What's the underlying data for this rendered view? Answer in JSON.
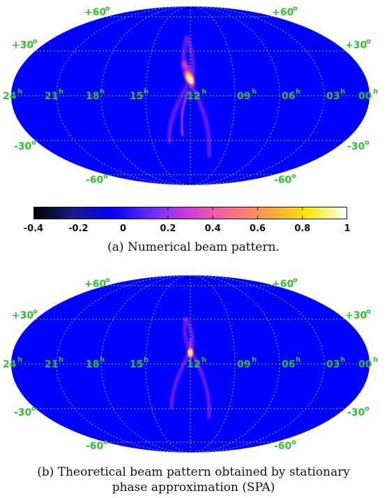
{
  "colorbar": {
    "ticks": [
      "-0.4",
      "-0.2",
      "0",
      "0.2",
      "0.4",
      "0.6",
      "0.8",
      "1"
    ],
    "colormap": [
      "#000000",
      "#1a1a8c",
      "#0000ff",
      "#6a2cff",
      "#d43cd4",
      "#ff6a8a",
      "#ffa040",
      "#ffe600",
      "#ffffff"
    ]
  },
  "map_style": {
    "background": "#0000ff",
    "grid_color": "#7fbf7f",
    "label_color": "#2fbf2f"
  },
  "labels": {
    "ra": [
      "24",
      "21",
      "18",
      "15",
      "12",
      "09",
      "06",
      "03",
      "00"
    ],
    "ra_unit": "h",
    "dec_pos": [
      "+60",
      "+30"
    ],
    "dec_neg": [
      "-30",
      "-60"
    ],
    "dec_unit": "o"
  },
  "panels": [
    {
      "caption": "(a) Numerical beam pattern."
    },
    {
      "caption_line1": "(b) Theoretical beam pattern obtained by stationary",
      "caption_line2": "phase approximation (SPA)"
    }
  ]
}
